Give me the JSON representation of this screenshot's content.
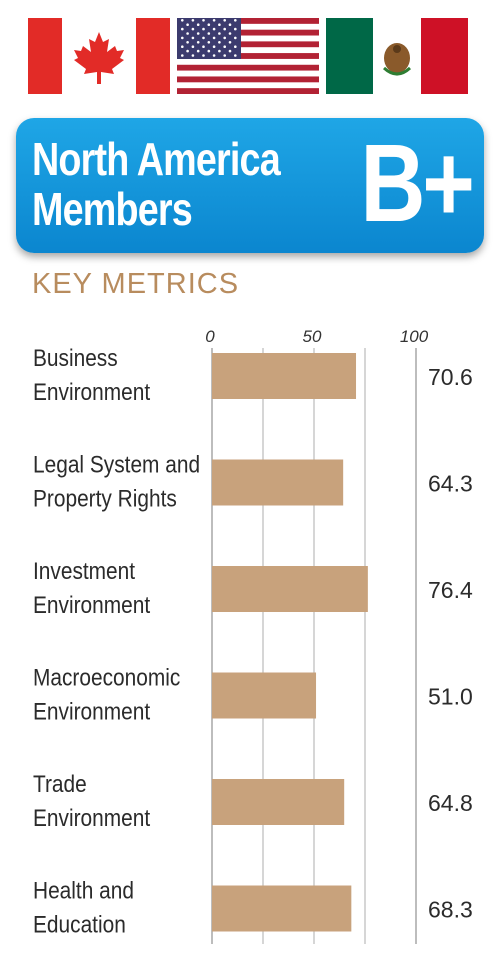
{
  "flags": [
    {
      "name": "canada-flag",
      "colors": [
        "#e22b27",
        "#ffffff"
      ]
    },
    {
      "name": "usa-flag",
      "colors": [
        "#b22234",
        "#ffffff",
        "#3c3b6e"
      ]
    },
    {
      "name": "mexico-flag",
      "colors": [
        "#006847",
        "#ffffff",
        "#ce1126"
      ]
    }
  ],
  "banner": {
    "title_line1": "North America",
    "title_line2": "Members",
    "grade": "B+",
    "color": "#1496dc"
  },
  "section_heading": "KEY METRICS",
  "chart_data": {
    "type": "bar",
    "orientation": "horizontal",
    "title": "",
    "xlabel": "",
    "ylabel": "",
    "xlim": [
      0,
      100
    ],
    "ticks": [
      0,
      50,
      100
    ],
    "grid": true,
    "bar_color": "#c8a27c",
    "categories": [
      [
        "Business",
        "Environment"
      ],
      [
        "Legal System and",
        "Property Rights"
      ],
      [
        "Investment",
        "Environment"
      ],
      [
        "Macroeconomic",
        "Environment"
      ],
      [
        "Trade",
        "Environment"
      ],
      [
        "Health and",
        "Education"
      ]
    ],
    "values": [
      70.6,
      64.3,
      76.4,
      51.0,
      64.8,
      68.3
    ],
    "value_labels": [
      "70.6",
      "64.3",
      "76.4",
      "51.0",
      "64.8",
      "68.3"
    ]
  }
}
